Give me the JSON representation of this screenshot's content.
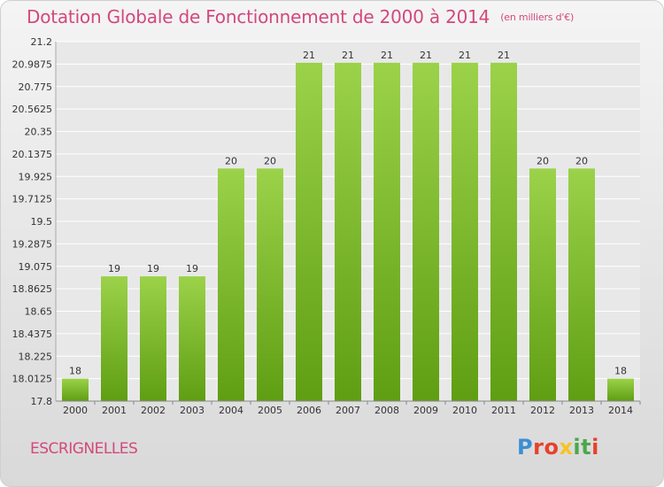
{
  "header": {
    "title": "Dotation Globale de Fonctionnement de 2000 à 2014",
    "subtitle": "(en milliers d'€)"
  },
  "footer": {
    "commune": "ESCRIGNELLES",
    "logo_letters": [
      "P",
      "r",
      "o",
      "x",
      "i",
      "t",
      "i"
    ],
    "logo_colors": [
      "#3c8fd3",
      "#e8412c",
      "#e8412c",
      "#f6c325",
      "#4aa84a",
      "#4aa84a",
      "#e8412c"
    ]
  },
  "colors": {
    "bar_light": "#9bd24a",
    "bar_dark": "#5f9e13",
    "grid": "#ffffff",
    "plot_bg": "#e8e8e8",
    "accent": "#d3487c"
  },
  "chart_data": {
    "type": "bar",
    "title": "Dotation Globale de Fonctionnement de 2000 à 2014",
    "subtitle": "(en milliers d'€)",
    "categories": [
      "2000",
      "2001",
      "2002",
      "2003",
      "2004",
      "2005",
      "2006",
      "2007",
      "2008",
      "2009",
      "2010",
      "2011",
      "2012",
      "2013",
      "2014"
    ],
    "values": [
      18.0125,
      18.98,
      18.98,
      18.98,
      20.0,
      20.0,
      21.0,
      21.0,
      21.0,
      21.0,
      21.0,
      21.0,
      20.0,
      20.0,
      18.0125
    ],
    "data_labels": [
      "18",
      "19",
      "19",
      "19",
      "20",
      "20",
      "21",
      "21",
      "21",
      "21",
      "21",
      "21",
      "20",
      "20",
      "18"
    ],
    "ylim": [
      17.8,
      21.2
    ],
    "yticks": [
      "17.8",
      "18.0125",
      "18.225",
      "18.4375",
      "18.65",
      "18.8625",
      "19.075",
      "19.2875",
      "19.5",
      "19.7125",
      "19.925",
      "20.1375",
      "20.35",
      "20.5625",
      "20.775",
      "20.9875",
      "21.2"
    ],
    "xlabel": "",
    "ylabel": "",
    "grid": true,
    "legend": "none"
  }
}
